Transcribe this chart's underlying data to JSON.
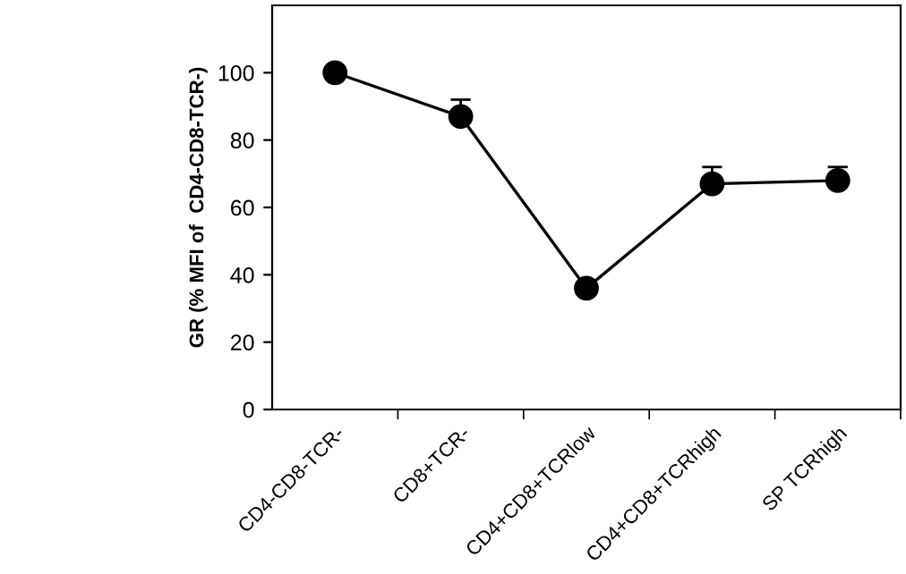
{
  "chart_data": {
    "type": "line",
    "ylabel": "GR (% MFI of  CD4-CD8-TCR-)",
    "categories": [
      "CD4-CD8-TCR-",
      "CD8+TCR-",
      "CD4+CD8+TCRlow",
      "CD4+CD8+TCRhigh",
      "SP TCRhigh"
    ],
    "series": [
      {
        "color": "#000000",
        "values": [
          100,
          87,
          36,
          67,
          68
        ],
        "errors": [
          null,
          [
            87,
            92
          ],
          null,
          [
            67,
            72
          ],
          [
            68,
            72
          ]
        ]
      }
    ],
    "ylim": [
      0,
      120
    ],
    "yticks": [
      0,
      20,
      40,
      60,
      80,
      100
    ],
    "marker": "circle",
    "line_style": "solid",
    "grid": false,
    "legend": false
  }
}
